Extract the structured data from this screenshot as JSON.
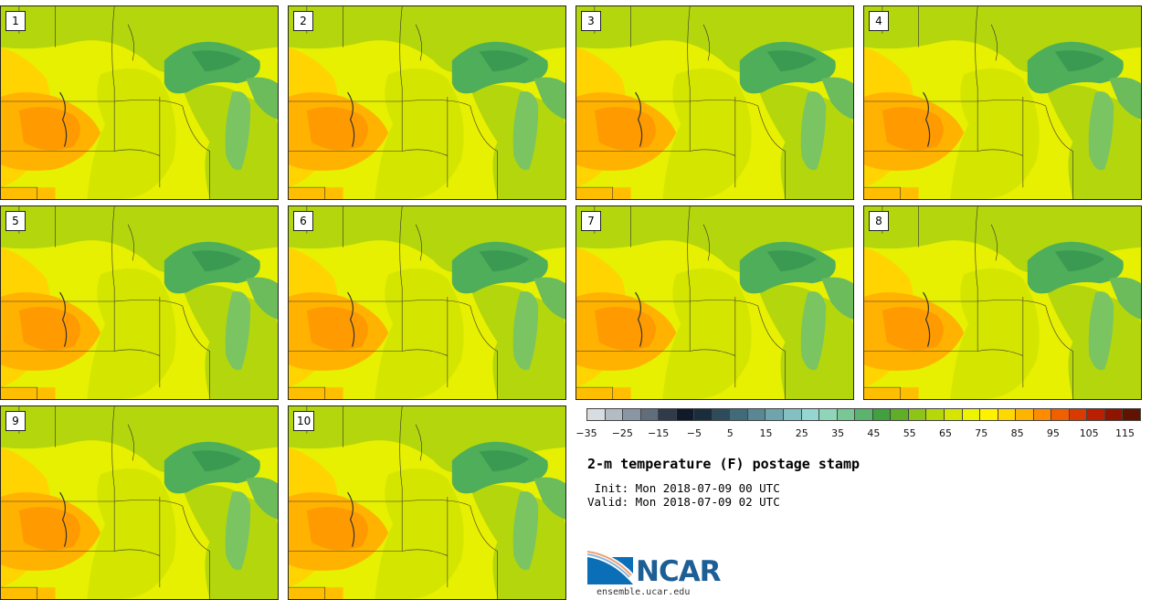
{
  "members": [
    {
      "label": "1"
    },
    {
      "label": "2"
    },
    {
      "label": "3"
    },
    {
      "label": "4"
    },
    {
      "label": "5"
    },
    {
      "label": "6"
    },
    {
      "label": "7"
    },
    {
      "label": "8"
    },
    {
      "label": "9"
    },
    {
      "label": "10"
    }
  ],
  "colorbar": {
    "colors": [
      "#d8dde2",
      "#b3bcc5",
      "#8a96a3",
      "#606d7d",
      "#2f3a4a",
      "#0f1a2a",
      "#1a2d3c",
      "#2e4b5c",
      "#416a7a",
      "#588894",
      "#6ea5ac",
      "#84c0c2",
      "#96d6d0",
      "#8fd5b7",
      "#79c795",
      "#5ab46e",
      "#40a13e",
      "#5fae28",
      "#8ec417",
      "#b6d80b",
      "#d6e600",
      "#eef300",
      "#fff200",
      "#ffd800",
      "#ffb400",
      "#ff8c00",
      "#f06000",
      "#d93a00",
      "#b91f00",
      "#8e1500",
      "#5f1300"
    ],
    "ticks": [
      "−35",
      "−25",
      "−15",
      "−5",
      "5",
      "15",
      "25",
      "35",
      "45",
      "55",
      "65",
      "75",
      "85",
      "95",
      "105",
      "115"
    ]
  },
  "title": "2-m temperature (F) postage stamp",
  "init": " Init: Mon 2018-07-09 00 UTC",
  "valid": "Valid: Mon 2018-07-09 02 UTC",
  "logo": {
    "text": "NCAR",
    "url": "ensemble.ucar.edu"
  }
}
